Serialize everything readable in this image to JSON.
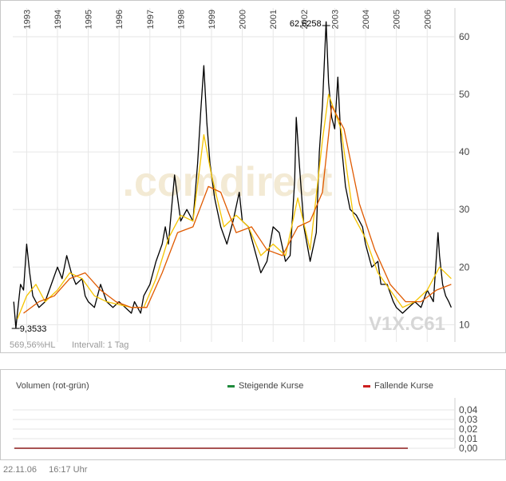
{
  "chart_data": [
    {
      "type": "line",
      "symbol": "V1X.C61",
      "watermark": ".comdirect",
      "price_range_label": "569,56%HL",
      "interval_label": "Intervall: 1 Tag",
      "y_ticks": [
        "10",
        "20",
        "30",
        "40",
        "50",
        "60"
      ],
      "x_ticks": [
        "1993",
        "1994",
        "1995",
        "1996",
        "1997",
        "1998",
        "1999",
        "2000",
        "2001",
        "2002",
        "2003",
        "2004",
        "2005",
        "2006"
      ],
      "ylim": [
        7,
        65
      ],
      "xlim": [
        1992.55,
        2006.9
      ],
      "grid": true,
      "annotations": {
        "max_label": "62,6258",
        "max_x": 2002.72,
        "max_y": 62.6258,
        "min_label": "9,3533",
        "min_x": 1992.62,
        "min_y": 9.3533
      },
      "series": [
        {
          "color": "#000000",
          "points": [
            [
              1992.58,
              14
            ],
            [
              1992.65,
              9.4
            ],
            [
              1992.7,
              12
            ],
            [
              1992.8,
              17
            ],
            [
              1992.9,
              16
            ],
            [
              1993.0,
              24
            ],
            [
              1993.1,
              19
            ],
            [
              1993.2,
              15
            ],
            [
              1993.4,
              13
            ],
            [
              1993.6,
              14
            ],
            [
              1993.8,
              17
            ],
            [
              1994.0,
              20
            ],
            [
              1994.15,
              18
            ],
            [
              1994.3,
              22
            ],
            [
              1994.45,
              19
            ],
            [
              1994.6,
              17
            ],
            [
              1994.8,
              18
            ],
            [
              1994.9,
              15
            ],
            [
              1995.0,
              14
            ],
            [
              1995.2,
              13
            ],
            [
              1995.4,
              17
            ],
            [
              1995.6,
              14
            ],
            [
              1995.8,
              13
            ],
            [
              1996.0,
              14
            ],
            [
              1996.2,
              13
            ],
            [
              1996.4,
              12
            ],
            [
              1996.5,
              14
            ],
            [
              1996.7,
              12
            ],
            [
              1996.8,
              15
            ],
            [
              1997.0,
              17
            ],
            [
              1997.2,
              21
            ],
            [
              1997.4,
              24
            ],
            [
              1997.5,
              27
            ],
            [
              1997.6,
              24
            ],
            [
              1997.8,
              36
            ],
            [
              1998.0,
              28
            ],
            [
              1998.2,
              30
            ],
            [
              1998.4,
              28
            ],
            [
              1998.55,
              38
            ],
            [
              1998.65,
              47
            ],
            [
              1998.75,
              55
            ],
            [
              1998.85,
              45
            ],
            [
              1998.95,
              38
            ],
            [
              1999.1,
              32
            ],
            [
              1999.3,
              27
            ],
            [
              1999.5,
              24
            ],
            [
              1999.7,
              28
            ],
            [
              1999.9,
              33
            ],
            [
              2000.0,
              28
            ],
            [
              2000.2,
              27
            ],
            [
              2000.4,
              23
            ],
            [
              2000.6,
              19
            ],
            [
              2000.8,
              21
            ],
            [
              2001.0,
              27
            ],
            [
              2001.2,
              26
            ],
            [
              2001.4,
              21
            ],
            [
              2001.55,
              22
            ],
            [
              2001.7,
              35
            ],
            [
              2001.75,
              46
            ],
            [
              2001.85,
              38
            ],
            [
              2002.0,
              27
            ],
            [
              2002.1,
              24
            ],
            [
              2002.2,
              21
            ],
            [
              2002.4,
              26
            ],
            [
              2002.5,
              40
            ],
            [
              2002.6,
              48
            ],
            [
              2002.72,
              62.6
            ],
            [
              2002.8,
              52
            ],
            [
              2002.9,
              46
            ],
            [
              2003.0,
              44
            ],
            [
              2003.1,
              53
            ],
            [
              2003.2,
              42
            ],
            [
              2003.35,
              34
            ],
            [
              2003.5,
              30
            ],
            [
              2003.7,
              29
            ],
            [
              2003.9,
              27
            ],
            [
              2004.0,
              24
            ],
            [
              2004.2,
              20
            ],
            [
              2004.4,
              21
            ],
            [
              2004.5,
              17
            ],
            [
              2004.7,
              17
            ],
            [
              2004.9,
              14
            ],
            [
              2005.0,
              13
            ],
            [
              2005.2,
              12
            ],
            [
              2005.4,
              13
            ],
            [
              2005.6,
              14
            ],
            [
              2005.8,
              13
            ],
            [
              2006.0,
              16
            ],
            [
              2006.2,
              14
            ],
            [
              2006.35,
              26
            ],
            [
              2006.4,
              22
            ],
            [
              2006.5,
              17
            ],
            [
              2006.6,
              15
            ],
            [
              2006.7,
              14
            ],
            [
              2006.78,
              13
            ]
          ]
        },
        {
          "color": "#f5c400",
          "points": [
            [
              1992.7,
              11
            ],
            [
              1993.0,
              15
            ],
            [
              1993.3,
              17
            ],
            [
              1993.6,
              14
            ],
            [
              1994.0,
              16
            ],
            [
              1994.4,
              19
            ],
            [
              1994.8,
              18
            ],
            [
              1995.2,
              15
            ],
            [
              1995.6,
              14
            ],
            [
              1996.0,
              13.5
            ],
            [
              1996.4,
              13
            ],
            [
              1996.8,
              13
            ],
            [
              1997.2,
              18
            ],
            [
              1997.6,
              25
            ],
            [
              1998.0,
              29
            ],
            [
              1998.4,
              28
            ],
            [
              1998.75,
              43
            ],
            [
              1999.0,
              36
            ],
            [
              1999.4,
              27
            ],
            [
              1999.8,
              29
            ],
            [
              2000.2,
              27
            ],
            [
              2000.6,
              22
            ],
            [
              2001.0,
              24
            ],
            [
              2001.4,
              22
            ],
            [
              2001.8,
              32
            ],
            [
              2002.2,
              23
            ],
            [
              2002.6,
              42
            ],
            [
              2002.8,
              50
            ],
            [
              2003.2,
              44
            ],
            [
              2003.6,
              29
            ],
            [
              2004.0,
              25
            ],
            [
              2004.4,
              19
            ],
            [
              2004.8,
              16
            ],
            [
              2005.2,
              13
            ],
            [
              2005.6,
              14
            ],
            [
              2006.0,
              16
            ],
            [
              2006.4,
              20
            ],
            [
              2006.78,
              18
            ]
          ]
        },
        {
          "color": "#e05a00",
          "points": [
            [
              1992.9,
              12
            ],
            [
              1993.4,
              14
            ],
            [
              1993.9,
              15
            ],
            [
              1994.4,
              18
            ],
            [
              1994.9,
              19
            ],
            [
              1995.4,
              16
            ],
            [
              1995.9,
              14
            ],
            [
              1996.4,
              13
            ],
            [
              1996.9,
              13
            ],
            [
              1997.4,
              19
            ],
            [
              1997.9,
              26
            ],
            [
              1998.4,
              27
            ],
            [
              1998.9,
              34
            ],
            [
              1999.3,
              33
            ],
            [
              1999.8,
              26
            ],
            [
              2000.3,
              27
            ],
            [
              2000.8,
              23
            ],
            [
              2001.3,
              22
            ],
            [
              2001.8,
              27
            ],
            [
              2002.2,
              28
            ],
            [
              2002.6,
              33
            ],
            [
              2002.9,
              48
            ],
            [
              2003.3,
              44
            ],
            [
              2003.8,
              31
            ],
            [
              2004.3,
              23
            ],
            [
              2004.8,
              17
            ],
            [
              2005.3,
              14
            ],
            [
              2005.8,
              14
            ],
            [
              2006.3,
              16
            ],
            [
              2006.78,
              17
            ]
          ]
        }
      ]
    },
    {
      "type": "bar",
      "title": "Volumen (rot-grün)",
      "y_ticks": [
        "0,04",
        "0,03",
        "0,02",
        "0,01",
        "0,00"
      ],
      "ylim": [
        0,
        0.045
      ],
      "legend": [
        {
          "label": "Steigende Kurse",
          "color": "#1f8a3c"
        },
        {
          "label": "Fallende Kurse",
          "color": "#cc1f1f"
        }
      ],
      "baseline_color": "#8b1a1a",
      "values": []
    }
  ],
  "footer": {
    "date": "22.11.06",
    "time": "16:17 Uhr"
  }
}
